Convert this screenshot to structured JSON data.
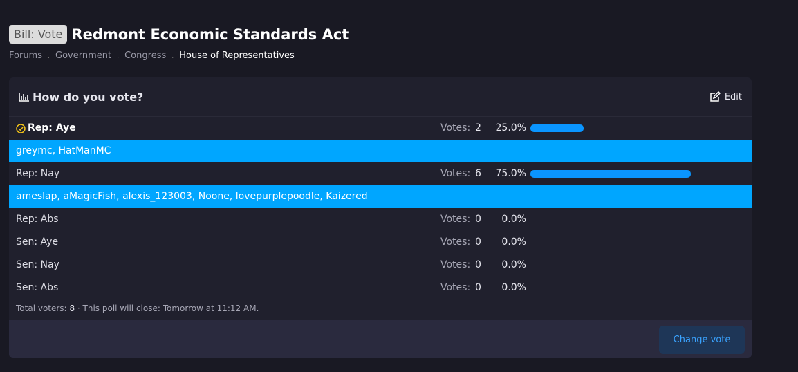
{
  "header": {
    "prefix": "Bill: Vote",
    "title": "Redmont Economic Standards Act"
  },
  "breadcrumbs": [
    "Forums",
    "Government",
    "Congress",
    "House of Representatives"
  ],
  "poll": {
    "question": "How do you vote?",
    "edit": "Edit",
    "votes_label": "Votes:",
    "options": [
      {
        "label": "Rep: Aye",
        "votes": 2,
        "percent": 25.0,
        "percent_label": "25.0%",
        "selected": true,
        "voters": "greymc, HatManMC"
      },
      {
        "label": "Rep: Nay",
        "votes": 6,
        "percent": 75.0,
        "percent_label": "75.0%",
        "voters": "ameslap, aMagicFish, alexis_123003, Noone, lovepurplepoodle, Kaizered"
      },
      {
        "label": "Rep: Abs",
        "votes": 0,
        "percent": 0.0,
        "percent_label": "0.0%"
      },
      {
        "label": "Sen: Aye",
        "votes": 0,
        "percent": 0.0,
        "percent_label": "0.0%"
      },
      {
        "label": "Sen: Nay",
        "votes": 0,
        "percent": 0.0,
        "percent_label": "0.0%"
      },
      {
        "label": "Sen: Abs",
        "votes": 0,
        "percent": 0.0,
        "percent_label": "0.0%"
      }
    ],
    "total_voters_label": "Total voters:",
    "total_voters": 8,
    "close_text": "· This poll will close: Tomorrow at 11:12 AM.",
    "button": "Change vote"
  }
}
